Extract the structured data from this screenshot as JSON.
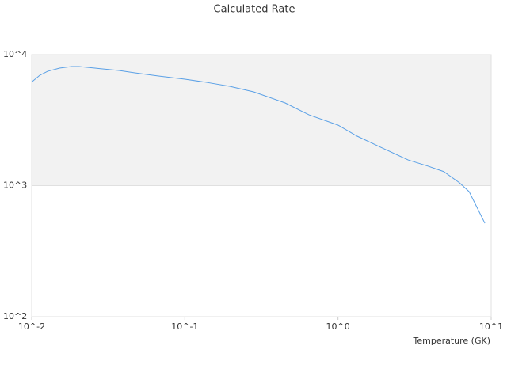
{
  "chart_data": {
    "type": "line",
    "title": "Calculated Rate",
    "x_label": "Temperature (GK)",
    "x_log": true,
    "y_log": true,
    "grid": true,
    "xlim": [
      0.01,
      10
    ],
    "ylim": [
      100,
      10000
    ],
    "xticks": [
      {
        "value": 0.01,
        "label": "10^-2"
      },
      {
        "value": 0.1,
        "label": "10^-1"
      },
      {
        "value": 1,
        "label": "10^0"
      },
      {
        "value": 10,
        "label": "10^1"
      }
    ],
    "yticks": [
      {
        "value": 100,
        "label": "10^2"
      },
      {
        "value": 1000,
        "label": "10^3"
      },
      {
        "value": 10000,
        "label": "10^4"
      }
    ],
    "x": [
      0.0101,
      0.0113,
      0.0127,
      0.0152,
      0.0182,
      0.0204,
      0.0259,
      0.0371,
      0.0471,
      0.0673,
      0.1,
      0.1375,
      0.196,
      0.281,
      0.452,
      0.647,
      1.0,
      1.33,
      1.89,
      2.87,
      3.86,
      4.9,
      6.22,
      7.18,
      8.08,
      9.1
    ],
    "series": [
      {
        "color": "#5aa0e6",
        "values": [
          6240,
          6960,
          7460,
          7890,
          8110,
          8110,
          7890,
          7570,
          7260,
          6870,
          6500,
          6150,
          5730,
          5200,
          4280,
          3470,
          2900,
          2390,
          1970,
          1570,
          1410,
          1280,
          1050,
          900,
          682,
          516
        ]
      }
    ]
  }
}
